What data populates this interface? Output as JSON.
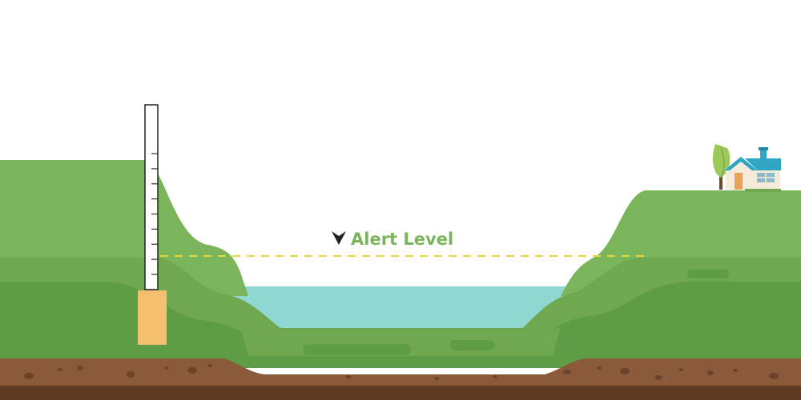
{
  "alert": {
    "label": "Alert Level",
    "icon": "chevron-down-icon"
  },
  "colors": {
    "sky": "#ffffff",
    "grass_light": "#7ab55c",
    "grass_mid": "#6fa84e",
    "grass_dark": "#5e9c45",
    "water": "#8fd8d2",
    "soil": "#8a5a3a",
    "soil_dark": "#5e3a22",
    "soil_spot": "#6b432a",
    "alert_line": "#e8d73a",
    "alert_text": "#7ab55c",
    "gauge_post": "#f4c06f",
    "gauge_body": "#ffffff",
    "gauge_ticks": "#333333",
    "house_wall": "#f4ecd9",
    "house_roof": "#2fa7c4",
    "house_door": "#e9a25c",
    "tree_leaf": "#9bc95a",
    "tree_trunk": "#6b4a2b"
  },
  "gauge": {
    "tick_count": 8
  }
}
